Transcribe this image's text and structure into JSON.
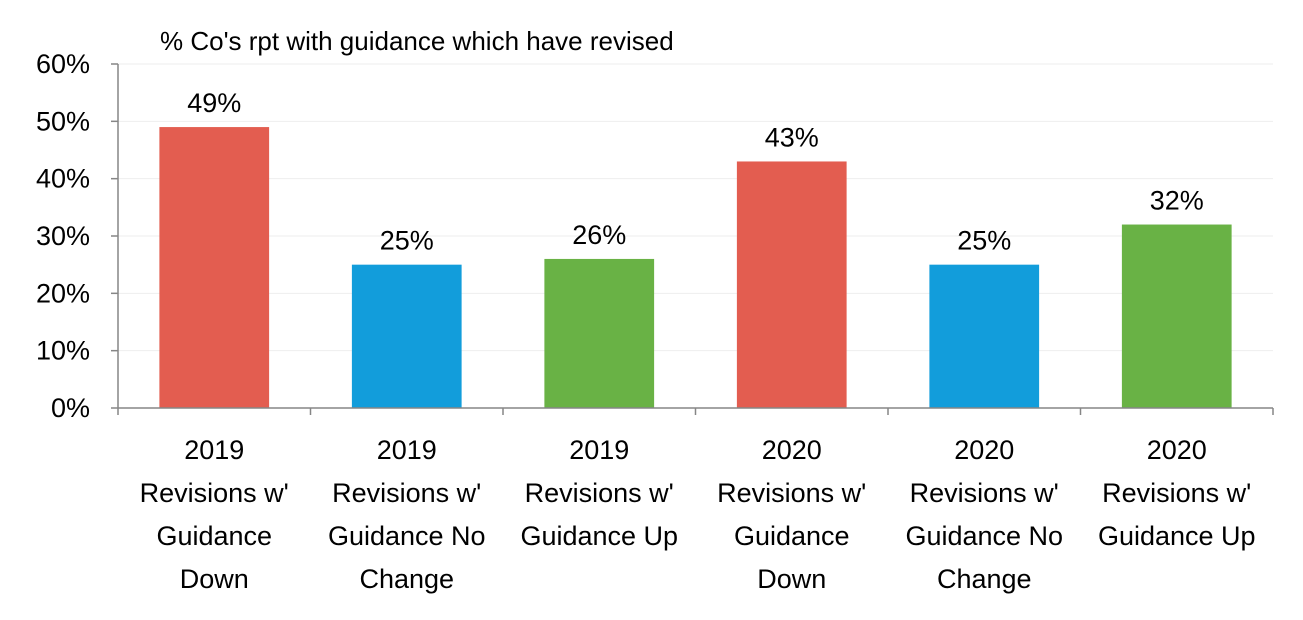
{
  "chart_data": {
    "type": "bar",
    "title": "% Co's rpt with guidance which have revised",
    "xlabel": "",
    "ylabel": "",
    "ylim": [
      0,
      0.6
    ],
    "y_ticks": [
      0,
      0.1,
      0.2,
      0.3,
      0.4,
      0.5,
      0.6
    ],
    "y_tick_labels": [
      "0%",
      "10%",
      "20%",
      "30%",
      "40%",
      "50%",
      "60%"
    ],
    "grid": true,
    "legend": "none",
    "categories": [
      [
        "2019",
        "Revisions w'",
        "Guidance",
        "Down"
      ],
      [
        "2019",
        "Revisions w'",
        "Guidance No",
        "Change"
      ],
      [
        "2019",
        "Revisions w'",
        "Guidance Up"
      ],
      [
        "2020",
        "Revisions w'",
        "Guidance",
        "Down"
      ],
      [
        "2020",
        "Revisions w'",
        "Guidance No",
        "Change"
      ],
      [
        "2020",
        "Revisions w'",
        "Guidance Up"
      ]
    ],
    "values": [
      0.49,
      0.25,
      0.26,
      0.43,
      0.25,
      0.32
    ],
    "data_labels": [
      "49%",
      "25%",
      "26%",
      "43%",
      "25%",
      "32%"
    ],
    "bar_colors": [
      "#e35d50",
      "#129ddb",
      "#69b245",
      "#e35d50",
      "#129ddb",
      "#69b245"
    ]
  }
}
